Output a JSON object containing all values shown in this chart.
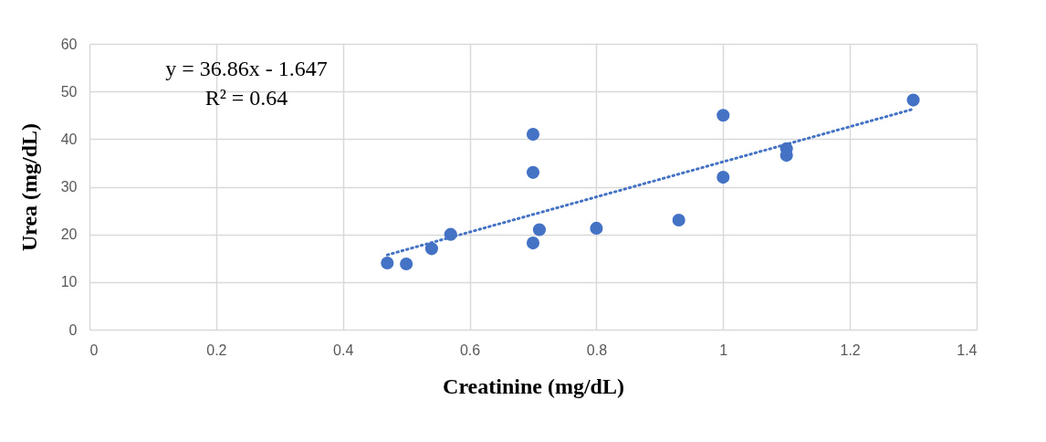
{
  "chart_data": {
    "type": "scatter",
    "xlabel": "Creatinine (mg/dL)",
    "ylabel": "Urea (mg/dL)",
    "annotations": [
      "y = 36.86x - 1.647",
      "R² = 0.64"
    ],
    "xlim": [
      0,
      1.4
    ],
    "xticks": [
      0,
      0.2,
      0.4,
      0.6,
      0.8,
      1,
      1.2,
      1.4
    ],
    "ylim": [
      0,
      60
    ],
    "yticks": [
      0,
      10,
      20,
      30,
      40,
      50,
      60
    ],
    "grid": true,
    "marker": "circle",
    "series": [
      {
        "color": "#4472c4",
        "x": [
          0.47,
          0.5,
          0.54,
          0.57,
          0.7,
          0.7,
          0.7,
          0.71,
          0.8,
          0.93,
          1.0,
          1.0,
          1.1,
          1.1,
          1.3
        ],
        "values": [
          14,
          13.8,
          17,
          20,
          41,
          33,
          18.2,
          21,
          21.3,
          23,
          45,
          32,
          38,
          36.6,
          48.2
        ]
      },
      {
        "type": "line",
        "color": "#4472c4",
        "line_style": "dotted",
        "marker": "none",
        "x": [
          0.47,
          1.3
        ],
        "values": [
          15.7,
          46.3
        ]
      }
    ]
  }
}
